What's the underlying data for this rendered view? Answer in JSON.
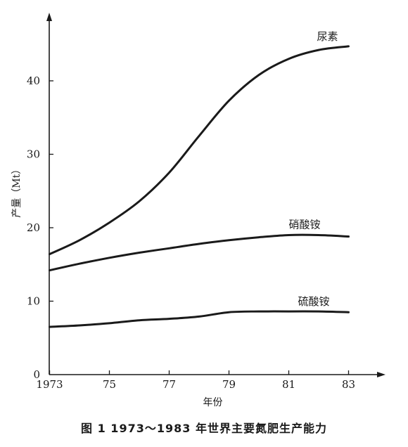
{
  "caption": "图 1 1973～1983 年世界主要氮肥生产能力",
  "chart_data": {
    "type": "line",
    "title": "",
    "xlabel": "年份",
    "ylabel": "产量（Mt）",
    "xlim": [
      1972.8,
      1984.3
    ],
    "ylim": [
      0,
      49
    ],
    "xticks": [
      1973,
      1975,
      1977,
      1979,
      1981,
      1983
    ],
    "xtick_labels": [
      "1973",
      "75",
      "77",
      "79",
      "81",
      "83"
    ],
    "yticks": [
      0,
      10,
      20,
      30,
      40
    ],
    "ytick_labels": [
      "0",
      "10",
      "20",
      "30",
      "40"
    ],
    "grid": false,
    "legend": "none",
    "series": [
      {
        "name": "尿素",
        "x": [
          1973,
          1974,
          1975,
          1976,
          1977,
          1978,
          1979,
          1980,
          1981,
          1982,
          1983
        ],
        "y": [
          16.4,
          18.3,
          20.7,
          23.6,
          27.5,
          32.5,
          37.3,
          40.8,
          43.0,
          44.2,
          44.7
        ]
      },
      {
        "name": "硝酸铵",
        "x": [
          1973,
          1974,
          1975,
          1976,
          1977,
          1978,
          1979,
          1980,
          1981,
          1982,
          1983
        ],
        "y": [
          14.2,
          15.1,
          15.9,
          16.6,
          17.2,
          17.8,
          18.3,
          18.7,
          19.0,
          19.0,
          18.8
        ]
      },
      {
        "name": "硫酸铵",
        "x": [
          1973,
          1974,
          1975,
          1976,
          1977,
          1978,
          1979,
          1980,
          1981,
          1982,
          1983
        ],
        "y": [
          6.5,
          6.7,
          7.0,
          7.4,
          7.6,
          7.9,
          8.5,
          8.6,
          8.6,
          8.6,
          8.5
        ]
      }
    ]
  }
}
